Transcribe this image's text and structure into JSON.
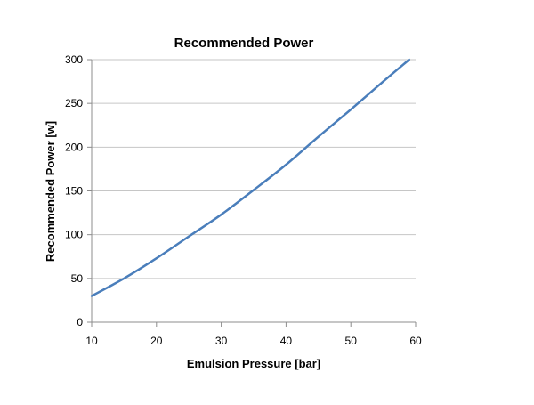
{
  "chart_data": {
    "type": "line",
    "title": "Recommended Power",
    "xlabel": "Emulsion Pressure [bar]",
    "ylabel": "Recommended Power [w]",
    "xlim": [
      10,
      60
    ],
    "ylim": [
      0,
      300
    ],
    "xticks": [
      10,
      20,
      30,
      40,
      50,
      60
    ],
    "yticks": [
      0,
      50,
      100,
      150,
      200,
      250,
      300
    ],
    "grid": "horizontal",
    "legend": "none",
    "series": [
      {
        "color": "#4a7ebb",
        "x": [
          10,
          15,
          20,
          25,
          30,
          35,
          40,
          45,
          50,
          55,
          59
        ],
        "y": [
          30,
          50,
          73,
          98,
          123,
          151,
          180,
          212,
          243,
          275,
          300
        ]
      }
    ]
  }
}
